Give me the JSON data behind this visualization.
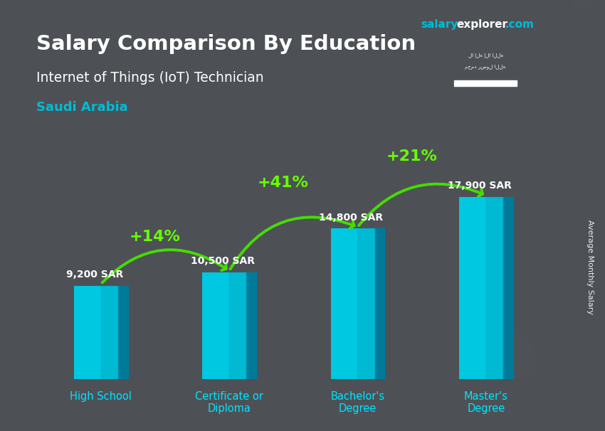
{
  "title": "Salary Comparison By Education",
  "subtitle": "Internet of Things (IoT) Technician",
  "country": "Saudi Arabia",
  "ylabel": "Average Monthly Salary",
  "categories": [
    "High School",
    "Certificate or\nDiploma",
    "Bachelor's\nDegree",
    "Master's\nDegree"
  ],
  "values": [
    9200,
    10500,
    14800,
    17900
  ],
  "bar_color": "#00c8e0",
  "bar_color_dark": "#007a99",
  "bar_color_mid": "#009ab8",
  "value_labels": [
    "9,200 SAR",
    "10,500 SAR",
    "14,800 SAR",
    "17,900 SAR"
  ],
  "pct_labels": [
    "+14%",
    "+41%",
    "+21%"
  ],
  "title_color": "#ffffff",
  "subtitle_color": "#ffffff",
  "country_color": "#00bcd4",
  "tick_label_color": "#00e5ff",
  "value_label_color": "#ffffff",
  "pct_color": "#66ff00",
  "arrow_color": "#44dd00",
  "background_color": "#3a3a3a",
  "flag_bg": "#2d8a2d",
  "branding_color": "#00bcd4",
  "ylim": [
    0,
    22000
  ],
  "figsize": [
    8.5,
    6.06
  ],
  "dpi": 100
}
